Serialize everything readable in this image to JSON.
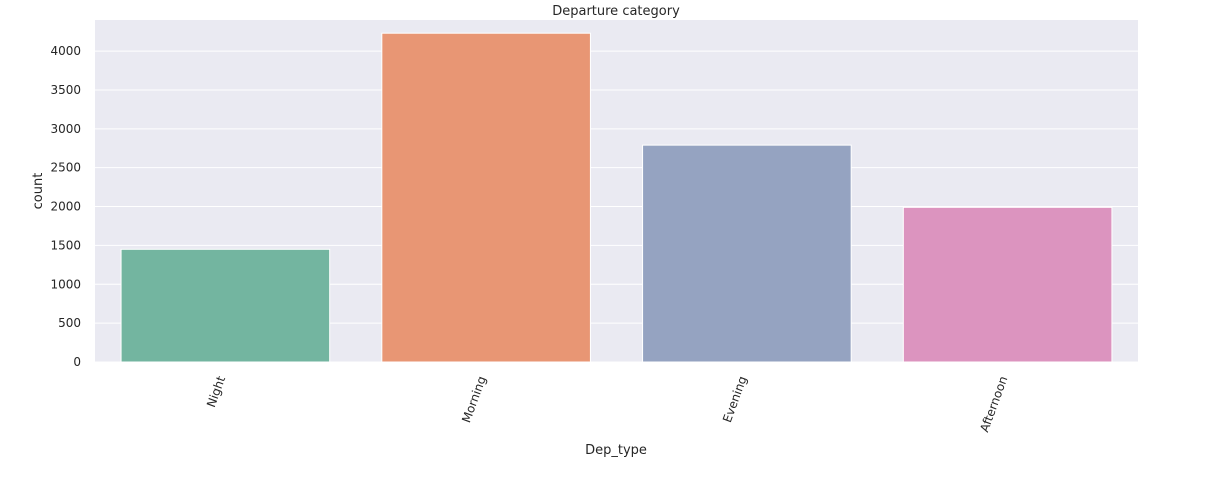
{
  "chart_data": {
    "type": "bar",
    "title": "Departure category",
    "xlabel": "Dep_type",
    "ylabel": "count",
    "categories": [
      "Night",
      "Morning",
      "Evening",
      "Afternoon"
    ],
    "values": [
      1450,
      4230,
      2790,
      1990
    ],
    "colors": [
      "#73b5a0",
      "#e89674",
      "#95a3c1",
      "#dc94bf"
    ],
    "ylim": [
      0,
      4400
    ],
    "yticks": [
      0,
      500,
      1000,
      1500,
      2000,
      2500,
      3000,
      3500,
      4000
    ],
    "grid": true,
    "background": "#eaeaf2",
    "xtick_rotation_deg": -70
  }
}
